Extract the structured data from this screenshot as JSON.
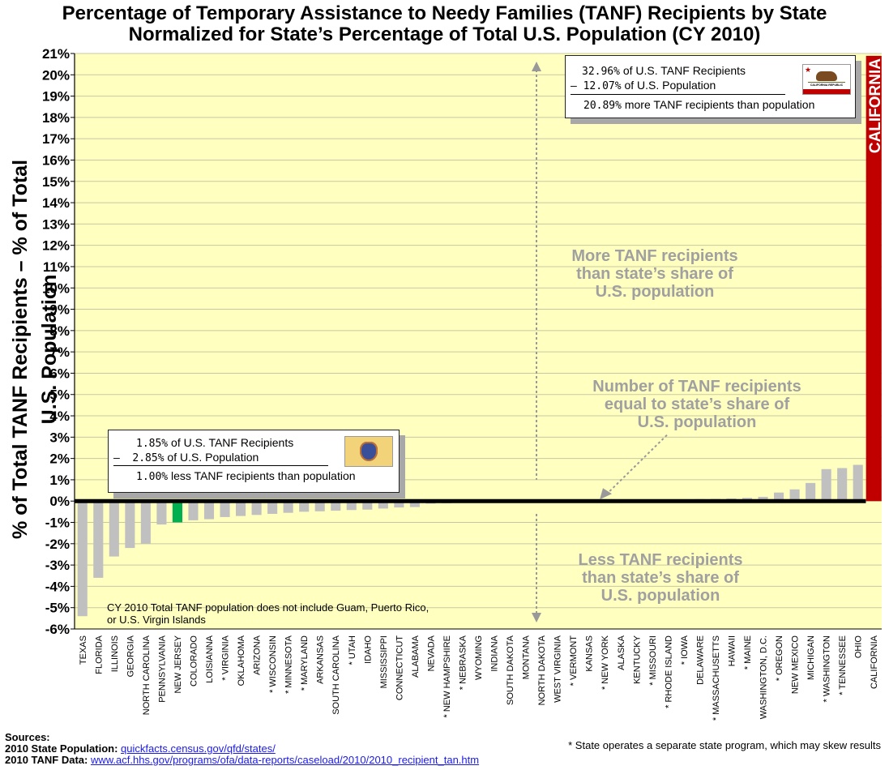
{
  "title_line1": "Percentage of Temporary Assistance to Needy Families (TANF) Recipients by State",
  "title_line2": "Normalized for State’s Percentage of Total U.S. Population (CY 2010)",
  "colors": {
    "plot_bg": "#ffffc0",
    "bar": "#c0c0c0",
    "highlight_low": "#00b050",
    "highlight_high": "#c00000",
    "annotation": "#a0a0a0",
    "grid": "#c8c8a0"
  },
  "chart_data": {
    "type": "bar",
    "title": "Percentage of Temporary Assistance to Needy Families (TANF) Recipients by State Normalized for State’s Percentage of Total U.S. Population (CY 2010)",
    "ylabel": "% of Total TANF Recipients – % of Total U.S. Population",
    "xlabel": "",
    "ylim": [
      -6,
      21
    ],
    "yticks": [
      "-6%",
      "-5%",
      "-4%",
      "-3%",
      "-2%",
      "-1%",
      "0%",
      "1%",
      "2%",
      "3%",
      "4%",
      "5%",
      "6%",
      "7%",
      "8%",
      "9%",
      "10%",
      "11%",
      "12%",
      "13%",
      "14%",
      "15%",
      "16%",
      "17%",
      "18%",
      "19%",
      "20%",
      "21%"
    ],
    "grid": true,
    "categories": [
      "TEXAS",
      "FLORIDA",
      "ILLINOIS",
      "GEORGIA",
      "NORTH CAROLINA",
      "PENNSYLVANIA",
      "NEW JERSEY",
      "COLORADO",
      "LOISIANNA",
      "* VIRGINIA",
      "OKLAHOMA",
      "ARIZONA",
      "* WISCONSIN",
      "* MINNESOTA",
      "* MARYLAND",
      "ARKANSAS",
      "SOUTH CAROLINA",
      "* UTAH",
      "IDAHO",
      "MISSISSIPPI",
      "CONNECTICUT",
      "ALABAMA",
      "NEVADA",
      "* NEW HAMPSHIRE",
      "* NEBRASKA",
      "WYOMING",
      "INDIANA",
      "SOUTH DAKOTA",
      "MONTANA",
      "NORTH DAKOTA",
      "WEST VIRGINIA",
      "* VERMONT",
      "KANSAS",
      "* NEW YORK",
      "ALASKA",
      "KENTUCKY",
      "* MISSOURI",
      "* RHODE ISLAND",
      "* IOWA",
      "DELAWARE",
      "* MASSACHUSETTS",
      "HAWAII",
      "* MAINE",
      "WASHINGTON, D.C.",
      "* OREGON",
      "NEW MEXICO",
      "MICHIGAN",
      "* WASHINGTON",
      "* TENNESSEE",
      "OHIO",
      "CALIFORNIA"
    ],
    "values": [
      -5.4,
      -3.6,
      -2.6,
      -2.2,
      -2.0,
      -1.1,
      -1.0,
      -0.9,
      -0.85,
      -0.75,
      -0.7,
      -0.65,
      -0.6,
      -0.55,
      -0.5,
      -0.48,
      -0.45,
      -0.42,
      -0.4,
      -0.35,
      -0.3,
      -0.28,
      -0.12,
      -0.1,
      -0.08,
      -0.07,
      -0.06,
      -0.04,
      -0.03,
      -0.02,
      -0.01,
      0.01,
      0.02,
      0.03,
      0.04,
      0.05,
      0.06,
      0.07,
      0.08,
      0.09,
      0.1,
      0.12,
      0.15,
      0.2,
      0.4,
      0.55,
      0.85,
      1.5,
      1.55,
      1.7,
      20.89
    ],
    "highlight": {
      "NEW JERSEY": "low",
      "CALIFORNIA": "high"
    },
    "bar_label": "CALIFORNIA",
    "annotations": {
      "more": [
        "More TANF recipients",
        "than state’s share of",
        "U.S. population"
      ],
      "equal": [
        "Number of TANF recipients",
        "equal to  state’s share of",
        "U.S. population"
      ],
      "less": [
        "Less TANF recipients",
        "than state’s share of",
        "U.S. population"
      ]
    }
  },
  "ca_box": {
    "pct_tanf": "32.96%",
    "tanf_text": "of U.S. TANF Recipients",
    "minus": "–",
    "pct_pop": "12.07%",
    "pop_text": "of U.S. Population",
    "pct_diff": "20.89%",
    "diff_text": "more TANF recipients than population",
    "flag_text": "CALIFORNIA REPUBLIC"
  },
  "nj_box": {
    "pct_tanf": "1.85%",
    "tanf_text": "of U.S. TANF Recipients",
    "minus": "–",
    "pct_pop": "2.85%",
    "pop_text": "of U.S. Population",
    "pct_diff": "1.00%",
    "diff_text": "less TANF recipients than population"
  },
  "note": "CY 2010 Total TANF population does not include Guam, Puerto Rico, or U.S. Virgin Islands",
  "sources": {
    "heading": "Sources:",
    "pop_label": "2010 State Population:",
    "pop_link": "quickfacts.census.gov/qfd/states/",
    "tanf_label": "2010 TANF Data:",
    "tanf_link": "www.acf.hhs.gov/programs/ofa/data-reports/caseload/2010/2010_recipient_tan.htm"
  },
  "footnote": "* State operates a separate state program, which may skew results"
}
